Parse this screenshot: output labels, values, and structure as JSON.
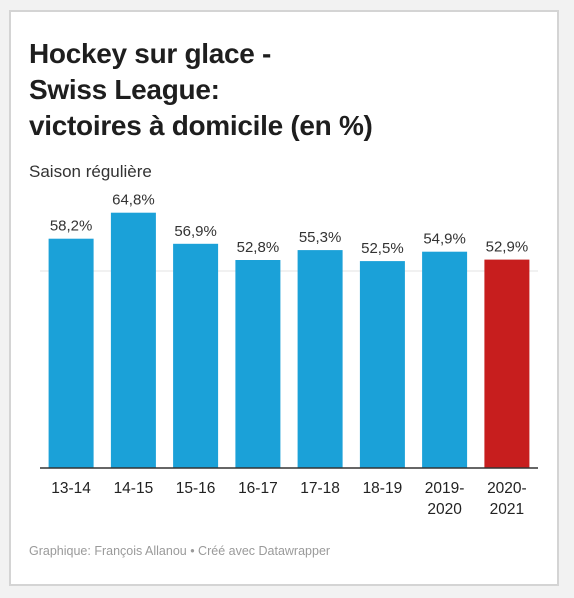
{
  "chart_data": {
    "type": "bar",
    "title_lines": [
      "Hockey sur glace -",
      "Swiss League:",
      "victoires à domicile (en %)"
    ],
    "subtitle": "Saison régulière",
    "categories": [
      [
        "13-14"
      ],
      [
        "14-15"
      ],
      [
        "15-16"
      ],
      [
        "16-17"
      ],
      [
        "17-18"
      ],
      [
        "18-19"
      ],
      [
        "2019-",
        "2020"
      ],
      [
        "2020-",
        "2021"
      ]
    ],
    "values": [
      58.2,
      64.8,
      56.9,
      52.8,
      55.3,
      52.5,
      54.9,
      52.9
    ],
    "value_labels": [
      "58,2%",
      "64,8%",
      "56,9%",
      "52,8%",
      "55,3%",
      "52,5%",
      "54,9%",
      "52,9%"
    ],
    "bar_colors": [
      "#1ba1d8",
      "#1ba1d8",
      "#1ba1d8",
      "#1ba1d8",
      "#1ba1d8",
      "#1ba1d8",
      "#1ba1d8",
      "#c71e1e"
    ],
    "ylim": [
      0,
      67
    ],
    "grid": true,
    "credit": "Graphique: François Allanou • Créé avec Datawrapper"
  },
  "colors": {
    "bar": "#1ba1d8",
    "highlight": "#c71e1e",
    "axis": "#333333",
    "gridline": "#e3e3e3"
  }
}
